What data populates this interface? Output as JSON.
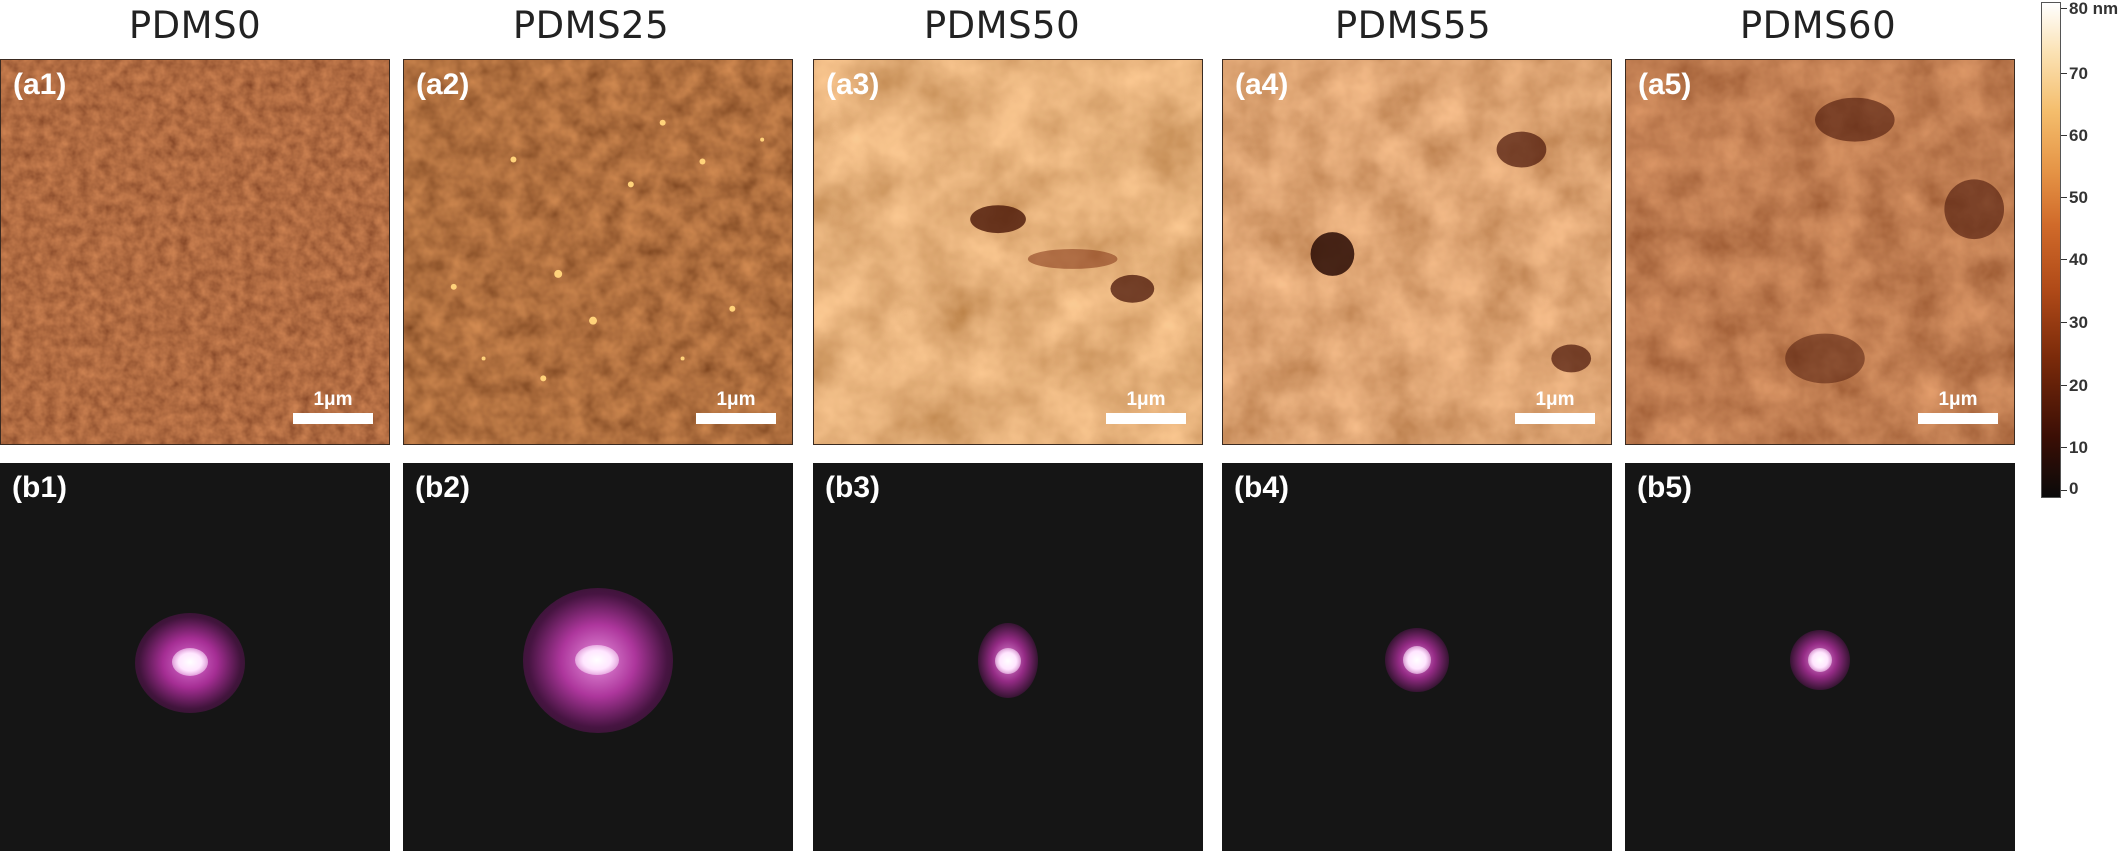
{
  "columns": [
    {
      "title": "PDMS0",
      "afm_label": "(a1)",
      "fft_label": "(b1)",
      "scalebar": "1μm"
    },
    {
      "title": "PDMS25",
      "afm_label": "(a2)",
      "fft_label": "(b2)",
      "scalebar": "1μm"
    },
    {
      "title": "PDMS50",
      "afm_label": "(a3)",
      "fft_label": "(b3)",
      "scalebar": "1μm"
    },
    {
      "title": "PDMS55",
      "afm_label": "(a4)",
      "fft_label": "(b4)",
      "scalebar": "1μm"
    },
    {
      "title": "PDMS60",
      "afm_label": "(a5)",
      "fft_label": "(b5)",
      "scalebar": "1μm"
    }
  ],
  "colorbar": {
    "ticks": [
      "80 nm",
      "70",
      "60",
      "50",
      "40",
      "30",
      "20",
      "10",
      "0"
    ]
  },
  "colors": {
    "afm_dark": "#3a1106",
    "afm_mid": "#a3461b",
    "afm_light": "#f6d6a0",
    "fft_background": "#151515",
    "fft_glow": "#b02a9a"
  }
}
